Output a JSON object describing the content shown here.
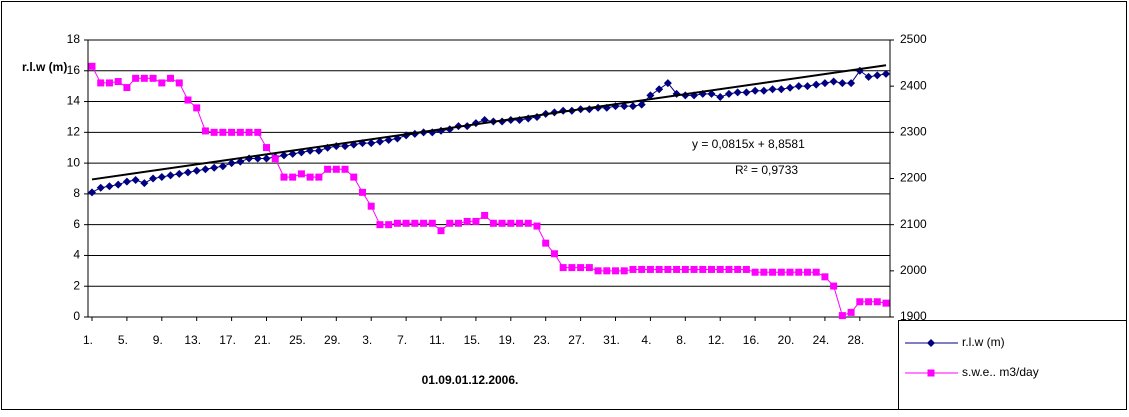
{
  "chart_data": {
    "type": "line",
    "y_label": "r.l.w (m)",
    "x_label": "01.09.01.12.2006.",
    "categories": [
      "1.",
      null,
      null,
      null,
      "5.",
      null,
      null,
      null,
      "9.",
      null,
      null,
      null,
      "13.",
      null,
      null,
      null,
      "17.",
      null,
      null,
      null,
      "21.",
      null,
      null,
      null,
      "25.",
      null,
      null,
      null,
      "29.",
      null,
      null,
      null,
      "3.",
      null,
      null,
      null,
      "7.",
      null,
      null,
      null,
      "11.",
      null,
      null,
      null,
      "15.",
      null,
      null,
      null,
      "19.",
      null,
      null,
      null,
      "23.",
      null,
      null,
      null,
      "27.",
      null,
      null,
      null,
      "31.",
      null,
      null,
      null,
      "4.",
      null,
      null,
      null,
      "8.",
      null,
      null,
      null,
      "12.",
      null,
      null,
      null,
      "16.",
      null,
      null,
      null,
      "20.",
      null,
      null,
      null,
      "24.",
      null,
      null,
      null,
      "28.",
      null,
      null,
      null
    ],
    "series": [
      {
        "name": "r.l.w (m)",
        "color": "#000080",
        "marker": "diamond",
        "axis": "y",
        "values": [
          8.1,
          8.4,
          8.5,
          8.6,
          8.8,
          8.9,
          8.7,
          9.0,
          9.1,
          9.2,
          9.3,
          9.4,
          9.5,
          9.6,
          9.7,
          9.8,
          10.0,
          10.1,
          10.3,
          10.3,
          10.3,
          10.4,
          10.5,
          10.6,
          10.7,
          10.8,
          10.8,
          11.0,
          11.1,
          11.1,
          11.2,
          11.3,
          11.3,
          11.4,
          11.5,
          11.6,
          11.8,
          11.9,
          12.0,
          12.0,
          12.1,
          12.2,
          12.4,
          12.4,
          12.6,
          12.8,
          12.7,
          12.7,
          12.8,
          12.8,
          12.9,
          13.0,
          13.2,
          13.3,
          13.4,
          13.4,
          13.5,
          13.5,
          13.6,
          13.6,
          13.7,
          13.7,
          13.7,
          13.8,
          14.4,
          14.8,
          15.2,
          14.5,
          14.4,
          14.4,
          14.5,
          14.5,
          14.3,
          14.5,
          14.6,
          14.6,
          14.7,
          14.7,
          14.8,
          14.8,
          14.9,
          15.0,
          15.0,
          15.1,
          15.2,
          15.3,
          15.2,
          15.2,
          16.0,
          15.6,
          15.7,
          15.8
        ]
      },
      {
        "name": "s.w.e.. m3/day",
        "color": "#ff00ff",
        "marker": "square",
        "axis": "y2",
        "values": [
          2443,
          2407,
          2407,
          2410,
          2397,
          2417,
          2417,
          2417,
          2407,
          2417,
          2407,
          2370,
          2353,
          2303,
          2300,
          2300,
          2300,
          2300,
          2300,
          2300,
          2267,
          2243,
          2203,
          2203,
          2210,
          2203,
          2203,
          2220,
          2220,
          2220,
          2203,
          2170,
          2140,
          2100,
          2100,
          2103,
          2103,
          2103,
          2103,
          2103,
          2087,
          2103,
          2103,
          2107,
          2107,
          2120,
          2103,
          2103,
          2103,
          2103,
          2103,
          2097,
          2060,
          2037,
          2007,
          2007,
          2007,
          2007,
          2000,
          2000,
          2000,
          2000,
          2003,
          2003,
          2003,
          2003,
          2003,
          2003,
          2003,
          2003,
          2003,
          2003,
          2003,
          2003,
          2003,
          2003,
          1997,
          1997,
          1997,
          1997,
          1997,
          1997,
          1997,
          1997,
          1987,
          1967,
          1903,
          1910,
          1933,
          1933,
          1933,
          1930
        ]
      }
    ],
    "trendline": {
      "slope": 0.0815,
      "intercept": 8.8581,
      "color": "#000000",
      "equation": "y = 0,0815x + 8,8581",
      "r_squared": "R² = 0,9733"
    },
    "ylim": [
      0,
      18
    ],
    "yticks": [
      0,
      2,
      4,
      6,
      8,
      10,
      12,
      14,
      16,
      18
    ],
    "y2lim": [
      1900,
      2500
    ],
    "y2ticks": [
      1900,
      2000,
      2100,
      2200,
      2300,
      2400,
      2500
    ],
    "grid": true,
    "legend": "bottom-right"
  }
}
